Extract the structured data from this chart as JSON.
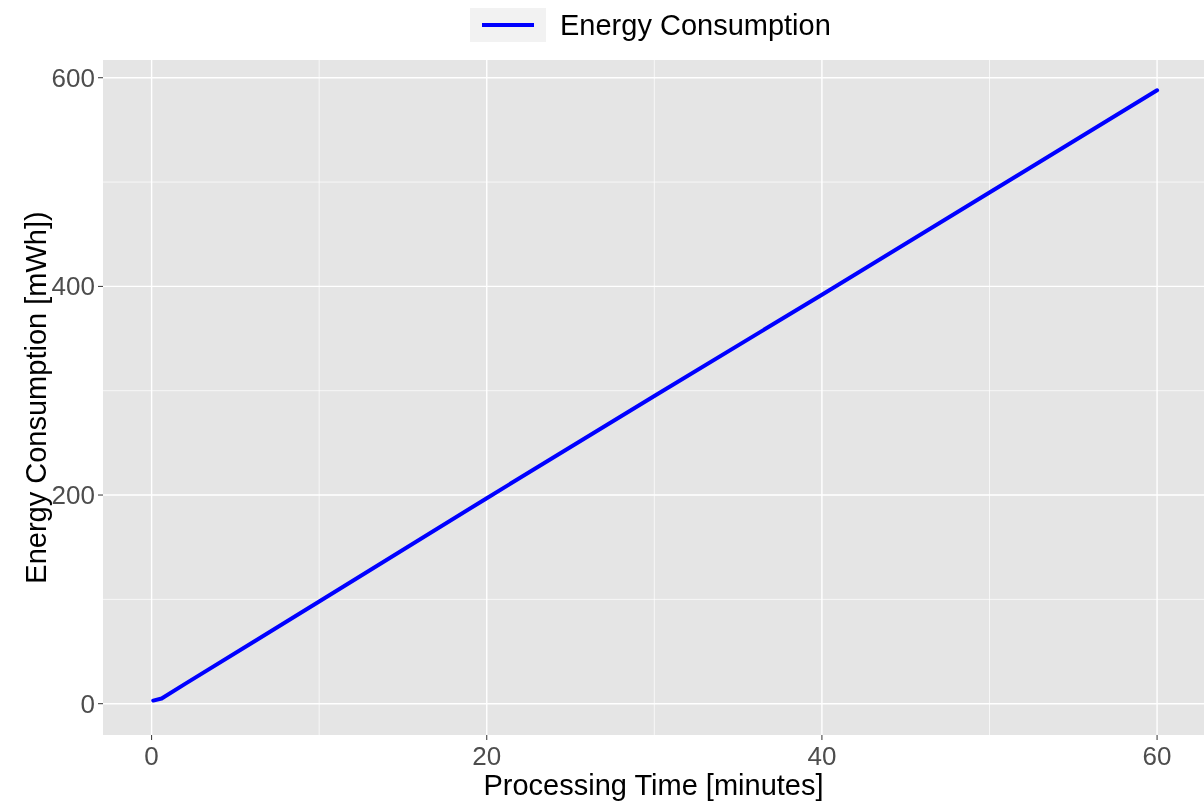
{
  "chart_data": {
    "type": "line",
    "xlabel": "Processing Time [minutes]",
    "ylabel": "Energy Consumption [mWh])",
    "x": [
      0.1,
      0.6,
      2,
      10,
      20,
      30,
      40,
      50,
      60
    ],
    "series": [
      {
        "name": "Energy Consumption",
        "color": "#0000ff",
        "values": [
          3,
          5,
          19,
          98,
          197,
          295,
          392,
          490,
          588
        ]
      }
    ],
    "xlim": [
      -2.9,
      62.8
    ],
    "ylim": [
      -30,
      617
    ],
    "xticks": [
      0,
      20,
      40,
      60
    ],
    "yticks": [
      0,
      200,
      400,
      600
    ],
    "grid": true,
    "legend": "top",
    "line_style": "solid"
  }
}
